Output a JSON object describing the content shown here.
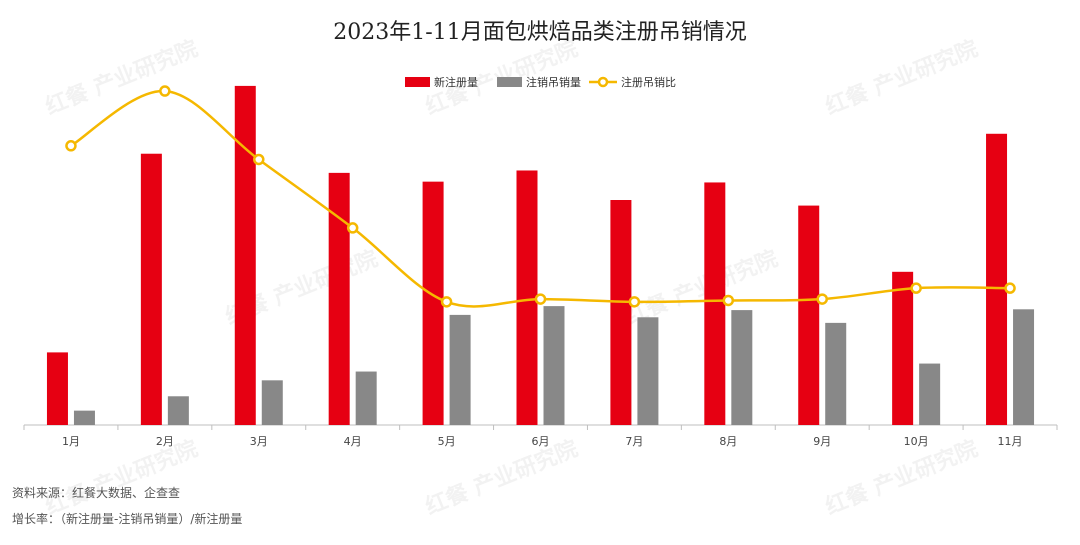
{
  "chart_data": {
    "type": "bar",
    "title": "2023年1-11月面包烘焙品类注册吊销情况",
    "categories": [
      "1月",
      "2月",
      "3月",
      "4月",
      "5月",
      "6月",
      "7月",
      "8月",
      "9月",
      "10月",
      "11月"
    ],
    "series": [
      {
        "name": "新注册量",
        "kind": "bar",
        "axis": "left",
        "color": "#e60012",
        "values": [
          91,
          340,
          425,
          316,
          305,
          319,
          282,
          304,
          275,
          192,
          365
        ]
      },
      {
        "name": "注销吊销量",
        "kind": "bar",
        "axis": "left",
        "color": "#888888",
        "values": [
          18,
          36,
          56,
          67,
          138,
          149,
          135,
          144,
          128,
          77,
          145
        ]
      },
      {
        "name": "注册吊销比",
        "kind": "line",
        "axis": "right",
        "color": "#f5b800",
        "values": [
          0.8,
          1.0,
          0.75,
          0.5,
          0.23,
          0.24,
          0.23,
          0.235,
          0.24,
          0.28,
          0.28
        ]
      }
    ],
    "ylim": [
      0,
      470
    ],
    "y2lim": [
      -0.22,
      1.15
    ],
    "legend": "top-center",
    "grid": false
  },
  "notes": {
    "source": "资料来源：红餐大数据、企查查",
    "formula": "增长率：（新注册量-注销吊销量）/新注册量"
  },
  "watermark": "红餐 产业研究院"
}
